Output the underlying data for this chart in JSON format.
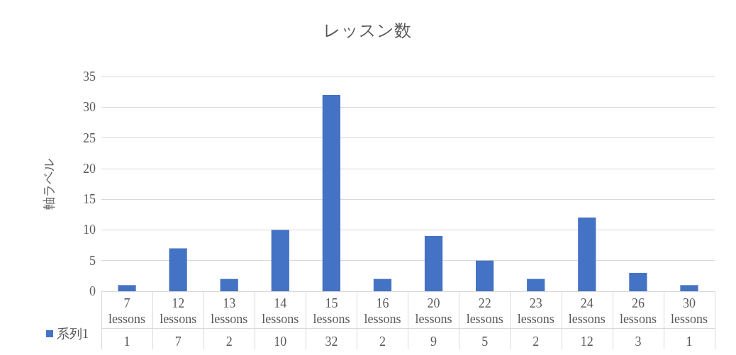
{
  "chart_data": {
    "type": "bar",
    "title": "レッスン数",
    "ylabel": "軸ラベル",
    "categories": [
      "7 lessons",
      "12 lessons",
      "13 lessons",
      "14 lessons",
      "15 lessons",
      "16 lessons",
      "20 lessons",
      "22 lessons",
      "23 lessons",
      "24 lessons",
      "26 lessons",
      "30 lessons"
    ],
    "series": [
      {
        "name": "系列1",
        "color": "#4472c4",
        "values": [
          1,
          7,
          2,
          10,
          32,
          2,
          9,
          5,
          2,
          12,
          3,
          1
        ]
      }
    ],
    "ylim": [
      0,
      35
    ],
    "yticks": [
      0,
      5,
      10,
      15,
      20,
      25,
      30,
      35
    ],
    "grid": "y",
    "legend": "bottom left",
    "data_labels": true
  }
}
